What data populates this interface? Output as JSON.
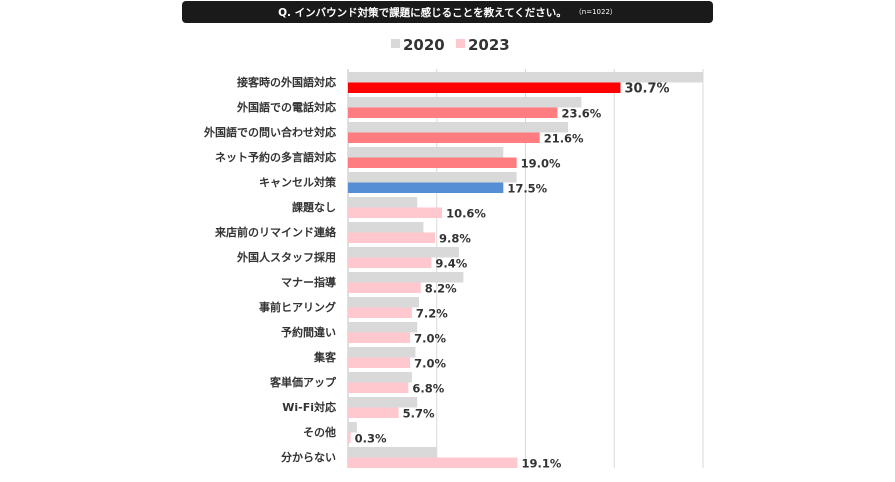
{
  "title": {
    "question": "Q. インバウンド対策で課題に感じることを教えてください。",
    "sample": "（n=1022）"
  },
  "chart_data": {
    "type": "bar",
    "orientation": "horizontal",
    "categories": [
      "接客時の外国語対応",
      "外国語での電話対応",
      "外国語での問い合わせ対応",
      "ネット予約の多言語対応",
      "キャンセル対策",
      "課題なし",
      "来店前のリマインド連絡",
      "外国人スタッフ採用",
      "マナー指導",
      "事前ヒアリング",
      "予約間違い",
      "集客",
      "客単価アップ",
      "Wi-Fi対応",
      "その他",
      "分からない"
    ],
    "series": [
      {
        "name": "2020",
        "color": "#d9d9d9",
        "values": [
          40.0,
          26.3,
          24.8,
          17.5,
          19.0,
          7.8,
          8.5,
          12.5,
          13.0,
          8.0,
          7.8,
          7.6,
          7.2,
          7.8,
          1.0,
          10.0
        ],
        "labels_shown": false
      },
      {
        "name": "2023",
        "color": "#ffc7ce",
        "values": [
          30.7,
          23.6,
          21.6,
          19.0,
          17.5,
          10.6,
          9.8,
          9.4,
          8.2,
          7.2,
          7.0,
          7.0,
          6.8,
          5.7,
          0.3,
          19.1
        ],
        "labels": [
          "30.7%",
          "23.6%",
          "21.6%",
          "19.0%",
          "17.5%",
          "10.6%",
          "9.8%",
          "9.4%",
          "8.2%",
          "7.2%",
          "7.0%",
          "7.0%",
          "6.8%",
          "5.7%",
          "0.3%",
          "19.1%"
        ],
        "colors": [
          "#ff0000",
          "#ff7c80",
          "#ff7c80",
          "#ff7c80",
          "#558ed5",
          "#ffc7ce",
          "#ffc7ce",
          "#ffc7ce",
          "#ffc7ce",
          "#ffc7ce",
          "#ffc7ce",
          "#ffc7ce",
          "#ffc7ce",
          "#ffc7ce",
          "#ffc7ce",
          "#ffc7ce"
        ]
      }
    ],
    "xlim": [
      0,
      40
    ],
    "gridlines_at": [
      0,
      10,
      20,
      30,
      40
    ],
    "grid": true,
    "legend": "top-center",
    "xlabel": "",
    "ylabel": "",
    "axis_tick_labels_shown": false
  }
}
